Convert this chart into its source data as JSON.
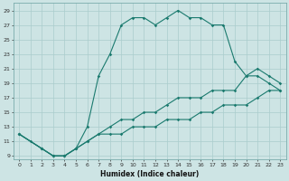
{
  "xlabel": "Humidex (Indice chaleur)",
  "ylabel": "",
  "bg_color": "#cde4e4",
  "grid_color": "#aacccc",
  "line_color": "#1a7a6e",
  "xlim": [
    -0.5,
    23.5
  ],
  "ylim": [
    8.5,
    30
  ],
  "xticks": [
    0,
    1,
    2,
    3,
    4,
    5,
    6,
    7,
    8,
    9,
    10,
    11,
    12,
    13,
    14,
    15,
    16,
    17,
    18,
    19,
    20,
    21,
    22,
    23
  ],
  "yticks": [
    9,
    11,
    13,
    15,
    17,
    19,
    21,
    23,
    25,
    27,
    29
  ],
  "curve1_x": [
    0,
    1,
    2,
    3,
    4,
    5,
    6,
    7,
    8,
    9,
    10,
    11,
    12,
    13,
    14,
    15,
    16,
    17,
    18,
    19,
    20,
    21,
    22,
    23
  ],
  "curve1_y": [
    12,
    11,
    10,
    9,
    9,
    10,
    13,
    20,
    23,
    27,
    28,
    28,
    27,
    28,
    29,
    28,
    28,
    27,
    27,
    22,
    20,
    20,
    19,
    18
  ],
  "curve2_x": [
    0,
    2,
    3,
    4,
    5,
    6,
    7,
    8,
    9,
    10,
    11,
    12,
    13,
    14,
    15,
    16,
    17,
    18,
    19,
    20,
    21,
    22,
    23
  ],
  "curve2_y": [
    12,
    10,
    9,
    9,
    10,
    11,
    12,
    13,
    14,
    14,
    15,
    15,
    16,
    17,
    17,
    17,
    18,
    18,
    18,
    20,
    21,
    20,
    19
  ],
  "curve3_x": [
    0,
    2,
    3,
    4,
    5,
    6,
    7,
    8,
    9,
    10,
    11,
    12,
    13,
    14,
    15,
    16,
    17,
    18,
    19,
    20,
    21,
    22,
    23
  ],
  "curve3_y": [
    12,
    10,
    9,
    9,
    10,
    11,
    12,
    12,
    12,
    13,
    13,
    13,
    14,
    14,
    14,
    15,
    15,
    16,
    16,
    16,
    17,
    18,
    18
  ]
}
